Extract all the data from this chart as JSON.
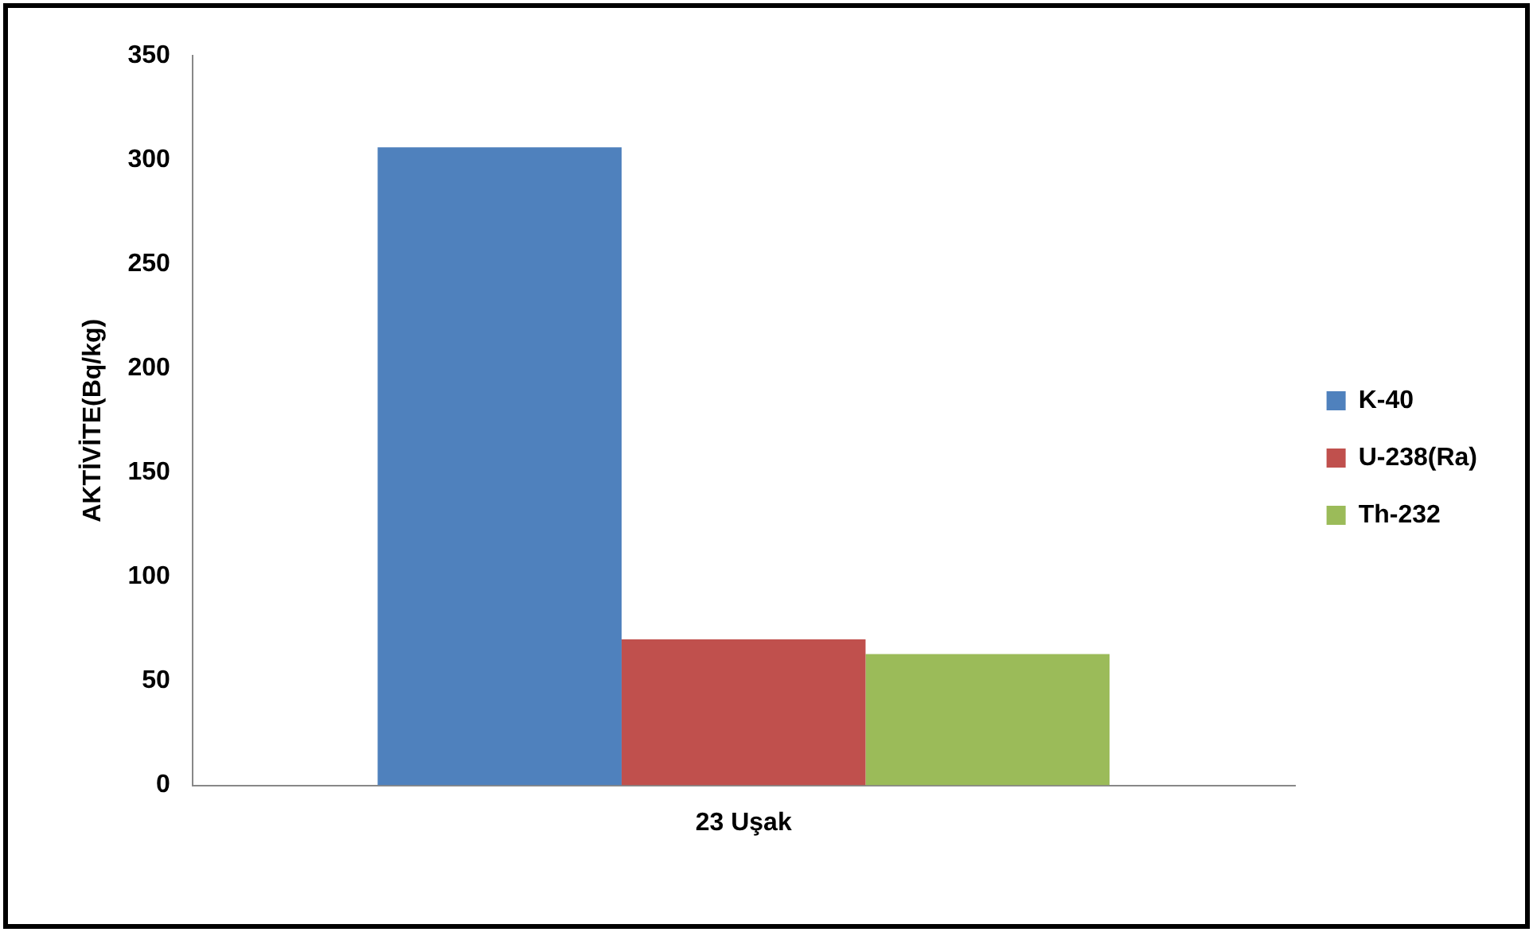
{
  "chart_data": {
    "type": "bar",
    "ylabel": "AKTİVİTE(Bq/kg)",
    "categories": [
      "23 Uşak"
    ],
    "series": [
      {
        "name": "K-40",
        "color": "#4f81bd",
        "values": [
          306
        ]
      },
      {
        "name": "U-238(Ra)",
        "color": "#c0504d",
        "values": [
          70
        ]
      },
      {
        "name": "Th-232",
        "color": "#9bbb59",
        "values": [
          63
        ]
      }
    ],
    "ylim": [
      0,
      350
    ],
    "yticks": [
      0,
      50,
      100,
      150,
      200,
      250,
      300,
      350
    ],
    "legend": "right"
  }
}
